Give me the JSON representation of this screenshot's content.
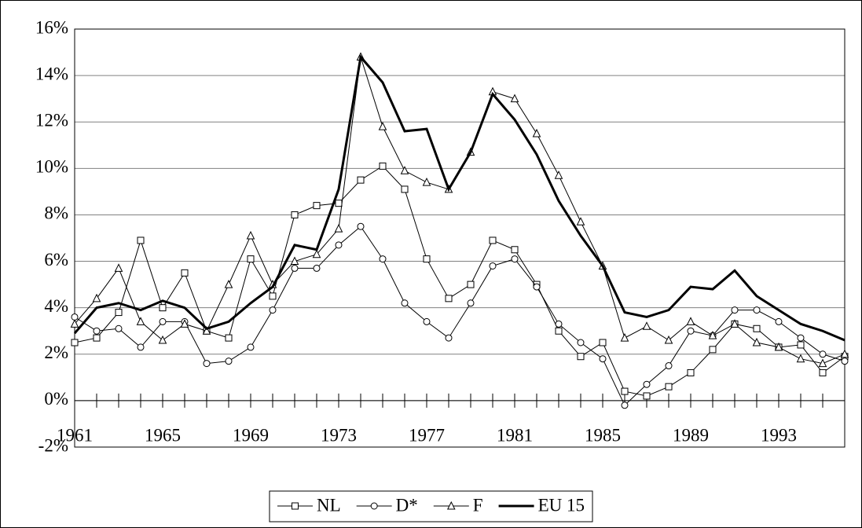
{
  "chart_data": {
    "type": "line",
    "x": [
      1961,
      1962,
      1963,
      1964,
      1965,
      1966,
      1967,
      1968,
      1969,
      1970,
      1971,
      1972,
      1973,
      1974,
      1975,
      1976,
      1977,
      1978,
      1979,
      1980,
      1981,
      1982,
      1983,
      1984,
      1985,
      1986,
      1987,
      1988,
      1989,
      1990,
      1991,
      1992,
      1993,
      1994,
      1995,
      1996
    ],
    "xlim": [
      1961,
      1996
    ],
    "xticks": [
      1961,
      1965,
      1969,
      1973,
      1977,
      1981,
      1985,
      1989,
      1993
    ],
    "ylim": [
      -2,
      16
    ],
    "yticks": [
      {
        "value": -2,
        "label": "-2%"
      },
      {
        "value": 0,
        "label": "0%"
      },
      {
        "value": 2,
        "label": "2%"
      },
      {
        "value": 4,
        "label": "4%"
      },
      {
        "value": 6,
        "label": "6%"
      },
      {
        "value": 8,
        "label": "8%"
      },
      {
        "value": 10,
        "label": "10%"
      },
      {
        "value": 12,
        "label": "12%"
      },
      {
        "value": 14,
        "label": "14%"
      },
      {
        "value": 16,
        "label": "16%"
      }
    ],
    "grid": true,
    "legend": "bottom",
    "series": [
      {
        "name": "NL",
        "color": "#000000",
        "marker": "square",
        "width": 1,
        "values": [
          2.5,
          2.7,
          3.8,
          6.9,
          4.0,
          5.5,
          3.0,
          2.7,
          6.1,
          4.5,
          8.0,
          8.4,
          8.5,
          9.5,
          10.1,
          9.1,
          6.1,
          4.4,
          5.0,
          6.9,
          6.5,
          5.0,
          3.0,
          1.9,
          2.5,
          0.4,
          0.2,
          0.6,
          1.2,
          2.2,
          3.3,
          3.1,
          2.3,
          2.4,
          1.2,
          1.9
        ]
      },
      {
        "name": "D*",
        "color": "#000000",
        "marker": "circle",
        "width": 1,
        "values": [
          3.6,
          3.0,
          3.1,
          2.3,
          3.4,
          3.4,
          1.6,
          1.7,
          2.3,
          3.9,
          5.7,
          5.7,
          6.7,
          7.5,
          6.1,
          4.2,
          3.4,
          2.7,
          4.2,
          5.8,
          6.1,
          4.9,
          3.3,
          2.5,
          1.8,
          -0.2,
          0.7,
          1.5,
          3.0,
          2.8,
          3.9,
          3.9,
          3.4,
          2.7,
          2.0,
          1.7
        ]
      },
      {
        "name": "F",
        "color": "#000000",
        "marker": "triangle",
        "width": 1,
        "values": [
          3.3,
          4.4,
          5.7,
          3.4,
          2.6,
          3.3,
          3.0,
          5.0,
          7.1,
          5.0,
          6.0,
          6.3,
          7.4,
          14.8,
          11.8,
          9.9,
          9.4,
          9.1,
          10.7,
          13.3,
          13.0,
          11.5,
          9.7,
          7.7,
          5.8,
          2.7,
          3.2,
          2.6,
          3.4,
          2.8,
          3.3,
          2.5,
          2.3,
          1.8,
          1.6,
          2.0
        ]
      },
      {
        "name": "EU 15",
        "color": "#000000",
        "marker": "none",
        "width": 3,
        "values": [
          2.9,
          4.0,
          4.2,
          3.9,
          4.3,
          4.0,
          3.1,
          3.4,
          4.2,
          4.9,
          6.7,
          6.5,
          9.1,
          14.8,
          13.7,
          11.6,
          11.7,
          9.1,
          10.7,
          13.2,
          12.1,
          10.6,
          8.6,
          7.1,
          5.8,
          3.8,
          3.6,
          3.9,
          4.9,
          4.8,
          5.6,
          4.5,
          3.9,
          3.3,
          3.0,
          2.6
        ]
      }
    ]
  }
}
